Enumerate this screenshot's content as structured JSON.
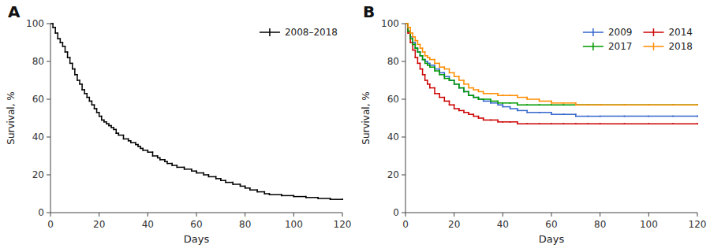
{
  "chart_data": [
    {
      "type": "step",
      "title": "A",
      "x_label": "Days",
      "y_label": "Survival, %",
      "x": [
        0,
        1,
        2,
        3,
        4,
        5,
        6,
        7,
        8,
        9,
        10,
        11,
        12,
        13,
        14,
        15,
        16,
        17,
        18,
        19,
        20,
        21,
        22,
        23,
        24,
        25,
        26,
        27,
        28,
        30,
        32,
        33,
        35,
        36,
        37,
        38,
        40,
        42,
        44,
        45,
        47,
        48,
        50,
        52,
        55,
        58,
        60,
        63,
        65,
        68,
        70,
        72,
        75,
        78,
        80,
        82,
        85,
        88,
        90,
        95,
        100,
        105,
        110,
        115,
        120
      ],
      "series": [
        {
          "name": "2008–2018",
          "color": "#000000",
          "values": [
            100,
            98,
            95,
            92,
            90,
            88,
            85,
            82,
            79,
            76,
            73,
            70,
            68,
            65,
            63,
            61,
            59,
            57,
            55,
            53,
            51,
            49,
            48,
            47,
            46,
            45,
            44,
            42,
            41,
            39,
            38,
            37,
            36,
            35,
            34,
            33,
            32,
            30,
            29,
            28,
            27,
            26,
            25,
            24,
            23,
            22,
            21,
            20,
            19,
            18,
            17,
            16,
            15,
            14,
            13,
            12,
            11,
            10,
            9.5,
            9,
            8.5,
            8,
            7.5,
            7,
            7
          ]
        }
      ],
      "xlim": [
        0,
        120
      ],
      "ylim": [
        0,
        100
      ],
      "xticks": [
        0,
        20,
        40,
        60,
        80,
        100,
        120
      ],
      "yticks": [
        0,
        20,
        40,
        60,
        80,
        100
      ],
      "grid": false,
      "legend": "upper-right"
    },
    {
      "type": "step",
      "title": "B",
      "x_label": "Days",
      "y_label": "Survival, %",
      "x": [
        0,
        1,
        2,
        3,
        4,
        5,
        6,
        7,
        8,
        9,
        10,
        12,
        14,
        16,
        18,
        20,
        22,
        24,
        26,
        28,
        30,
        32,
        35,
        38,
        40,
        43,
        46,
        50,
        55,
        60,
        65,
        70,
        75,
        80,
        90,
        100,
        110,
        120
      ],
      "series": [
        {
          "name": "2009",
          "color": "#3366CC",
          "values": [
            100,
            96,
            93,
            90,
            87,
            85,
            83,
            81,
            80,
            79,
            78,
            76,
            74,
            72,
            70,
            68,
            66,
            64,
            62,
            61,
            60,
            59,
            58,
            57,
            56,
            55,
            54,
            53,
            53,
            52,
            52,
            51,
            51,
            51,
            51,
            51,
            51,
            51
          ]
        },
        {
          "name": "2014",
          "color": "#CC0000",
          "values": [
            100,
            95,
            90,
            86,
            82,
            79,
            76,
            73,
            70,
            68,
            66,
            63,
            61,
            59,
            57,
            55,
            54,
            53,
            52,
            51,
            50,
            49,
            49,
            48,
            48,
            48,
            47,
            47,
            47,
            47,
            47,
            47,
            47,
            47,
            47,
            47,
            47,
            47
          ]
        },
        {
          "name": "2017",
          "color": "#009900",
          "values": [
            100,
            96,
            92,
            89,
            87,
            85,
            83,
            81,
            79,
            78,
            77,
            75,
            73,
            71,
            70,
            68,
            66,
            64,
            62,
            61,
            60,
            60,
            59,
            58,
            58,
            58,
            57,
            57,
            57,
            57,
            57,
            57,
            57,
            57,
            57,
            57,
            57,
            57
          ]
        },
        {
          "name": "2018",
          "color": "#FF8C00",
          "values": [
            100,
            98,
            95,
            93,
            91,
            89,
            87,
            85,
            83,
            82,
            81,
            79,
            77,
            76,
            74,
            72,
            70,
            68,
            66,
            65,
            64,
            63,
            63,
            62,
            62,
            62,
            61,
            60,
            59,
            58,
            58,
            57,
            57,
            57,
            57,
            57,
            57,
            57
          ]
        }
      ],
      "xlim": [
        0,
        120
      ],
      "ylim": [
        0,
        100
      ],
      "xticks": [
        0,
        20,
        40,
        60,
        80,
        100,
        120
      ],
      "yticks": [
        0,
        20,
        40,
        60,
        80,
        100
      ],
      "grid": false,
      "legend": "upper-right"
    }
  ]
}
